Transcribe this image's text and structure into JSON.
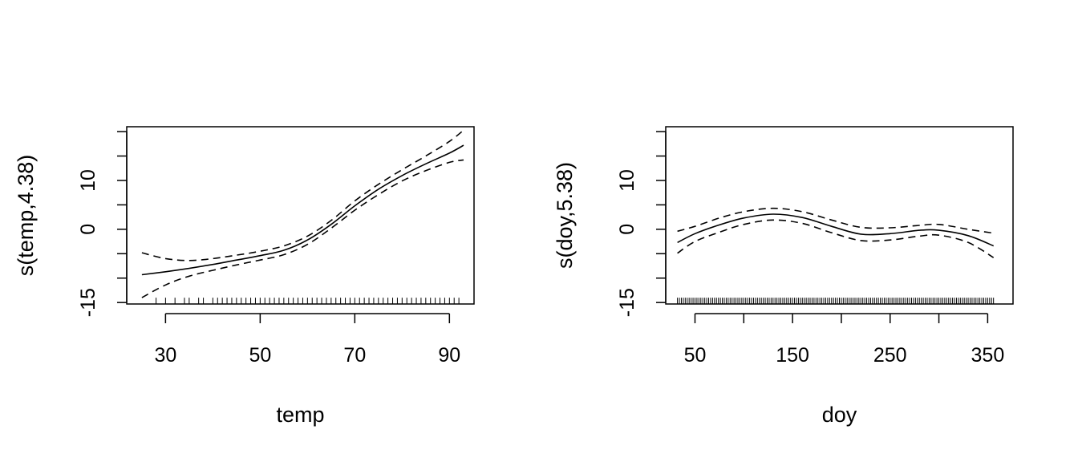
{
  "chart_data": [
    {
      "type": "line",
      "title": "",
      "xlabel": "temp",
      "ylabel": "s(temp,4.38)",
      "xlim": [
        21.8,
        95.2
      ],
      "ylim": [
        -15.3,
        21.0
      ],
      "x_ticks": [
        30,
        50,
        70,
        90
      ],
      "y_ticks": [
        -15,
        -10,
        -5,
        0,
        5,
        10,
        15,
        20
      ],
      "y_tick_labels": [
        "-15",
        "",
        "",
        "0",
        "",
        "10",
        "",
        ""
      ],
      "series": [
        {
          "name": "s(temp,4.38)",
          "style": "solid",
          "x": [
            25,
            30,
            35,
            40,
            45,
            50,
            55,
            60,
            65,
            70,
            75,
            80,
            85,
            90,
            93
          ],
          "y": [
            -9.3,
            -8.7,
            -8.0,
            -7.2,
            -6.3,
            -5.4,
            -4.3,
            -2.2,
            1.0,
            4.8,
            8.2,
            11.0,
            13.4,
            15.6,
            17.2
          ]
        },
        {
          "name": "upper band",
          "style": "dashed",
          "x": [
            25,
            30,
            35,
            40,
            45,
            50,
            55,
            60,
            65,
            70,
            75,
            80,
            85,
            90,
            93
          ],
          "y": [
            -4.8,
            -6.0,
            -6.4,
            -6.0,
            -5.3,
            -4.5,
            -3.4,
            -1.4,
            1.8,
            5.8,
            9.2,
            12.2,
            15.0,
            18.0,
            20.3
          ]
        },
        {
          "name": "lower band",
          "style": "dashed",
          "x": [
            25,
            30,
            35,
            40,
            45,
            50,
            55,
            60,
            65,
            70,
            75,
            80,
            85,
            90,
            93
          ],
          "y": [
            -14.0,
            -11.4,
            -9.6,
            -8.4,
            -7.3,
            -6.3,
            -5.2,
            -3.1,
            0.2,
            3.9,
            7.1,
            9.9,
            12.0,
            13.7,
            14.2
          ]
        }
      ],
      "rug": [
        28,
        30,
        32,
        34,
        35,
        37,
        38,
        40,
        41,
        42,
        43,
        44,
        45,
        46,
        47,
        48,
        49,
        50,
        51,
        52,
        53,
        54,
        55,
        56,
        57,
        58,
        59,
        60,
        61,
        62,
        63,
        64,
        65,
        66,
        67,
        68,
        69,
        70,
        71,
        72,
        73,
        74,
        75,
        76,
        77,
        78,
        79,
        80,
        81,
        82,
        83,
        84,
        85,
        86,
        87,
        88,
        89,
        90,
        91,
        92
      ]
    },
    {
      "type": "line",
      "title": "",
      "xlabel": "doy",
      "ylabel": "s(doy,5.38)",
      "xlim": [
        20,
        376
      ],
      "ylim": [
        -15.3,
        21.0
      ],
      "x_ticks": [
        50,
        100,
        150,
        200,
        250,
        300,
        350
      ],
      "x_tick_labels": [
        "50",
        "",
        "150",
        "",
        "250",
        "",
        "350"
      ],
      "y_ticks": [
        -15,
        -10,
        -5,
        0,
        5,
        10,
        15,
        20
      ],
      "y_tick_labels": [
        "-15",
        "",
        "",
        "0",
        "",
        "10",
        "",
        ""
      ],
      "series": [
        {
          "name": "s(doy,5.38)",
          "style": "solid",
          "x": [
            32,
            50,
            75,
            100,
            130,
            160,
            190,
            220,
            250,
            280,
            300,
            330,
            356
          ],
          "y": [
            -2.7,
            -0.9,
            0.9,
            2.3,
            3.1,
            2.4,
            0.6,
            -1.0,
            -0.9,
            -0.2,
            -0.2,
            -1.3,
            -3.4
          ]
        },
        {
          "name": "upper band",
          "style": "dashed",
          "x": [
            32,
            50,
            75,
            100,
            130,
            160,
            190,
            220,
            250,
            280,
            300,
            330,
            356
          ],
          "y": [
            -0.4,
            0.6,
            2.3,
            3.6,
            4.3,
            3.6,
            1.9,
            0.4,
            0.3,
            0.8,
            1.0,
            0.0,
            -0.8
          ]
        },
        {
          "name": "lower band",
          "style": "dashed",
          "x": [
            32,
            50,
            75,
            100,
            130,
            160,
            190,
            220,
            250,
            280,
            300,
            330,
            356
          ],
          "y": [
            -4.9,
            -2.5,
            -0.6,
            1.0,
            1.9,
            1.2,
            -0.7,
            -2.3,
            -2.2,
            -1.4,
            -1.2,
            -2.7,
            -5.8
          ]
        }
      ],
      "rug_range": [
        32,
        356
      ],
      "rug_step": 2
    }
  ]
}
